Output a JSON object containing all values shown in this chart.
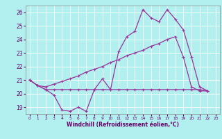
{
  "xlabel": "Windchill (Refroidissement éolien,°C)",
  "xlim": [
    -0.5,
    23.5
  ],
  "ylim": [
    18.5,
    26.5
  ],
  "yticks": [
    19,
    20,
    21,
    22,
    23,
    24,
    25,
    26
  ],
  "xticks": [
    0,
    1,
    2,
    3,
    4,
    5,
    6,
    7,
    8,
    9,
    10,
    11,
    12,
    13,
    14,
    15,
    16,
    17,
    18,
    19,
    20,
    21,
    22,
    23
  ],
  "bg_color": "#b2f0f0",
  "grid_color": "#ffffff",
  "line_color": "#993399",
  "line1_x": [
    0,
    1,
    2,
    3,
    4,
    5,
    6,
    7,
    8,
    9,
    10,
    11,
    12,
    13,
    14,
    15,
    16,
    17,
    18,
    19,
    20,
    21,
    22
  ],
  "line1_y": [
    21.0,
    20.6,
    20.3,
    19.9,
    18.8,
    18.7,
    19.0,
    18.7,
    20.3,
    21.1,
    20.3,
    23.1,
    24.2,
    24.6,
    26.2,
    25.6,
    25.3,
    26.2,
    25.5,
    24.7,
    22.7,
    20.5,
    20.2
  ],
  "line2_x": [
    0,
    1,
    2,
    3,
    4,
    5,
    6,
    7,
    8,
    9,
    10,
    11,
    12,
    13,
    14,
    15,
    16,
    17,
    18,
    19,
    20,
    21,
    22
  ],
  "line2_y": [
    21.0,
    20.6,
    20.3,
    20.3,
    20.3,
    20.3,
    20.3,
    20.3,
    20.3,
    20.3,
    20.3,
    20.3,
    20.3,
    20.3,
    20.3,
    20.3,
    20.3,
    20.3,
    20.3,
    20.3,
    20.3,
    20.3,
    20.2
  ],
  "line3_x": [
    0,
    1,
    2,
    3,
    4,
    5,
    6,
    7,
    8,
    9,
    10,
    11,
    12,
    13,
    14,
    15,
    16,
    17,
    18,
    19,
    20,
    21,
    22
  ],
  "line3_y": [
    21.0,
    20.6,
    20.5,
    20.7,
    20.9,
    21.1,
    21.3,
    21.6,
    21.8,
    22.0,
    22.3,
    22.5,
    22.8,
    23.0,
    23.2,
    23.5,
    23.7,
    24.0,
    24.2,
    22.7,
    20.5,
    20.2,
    20.2
  ]
}
